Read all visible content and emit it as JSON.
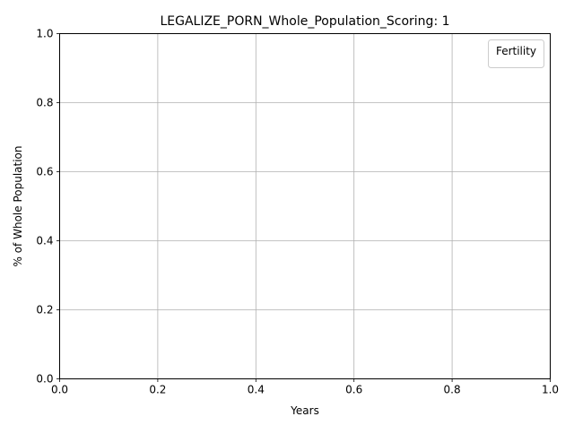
{
  "chart_data": {
    "type": "line",
    "title": "LEGALIZE_PORN_Whole_Population_Scoring: 1",
    "xlabel": "Years",
    "ylabel": "% of Whole Population",
    "xlim": [
      0.0,
      1.0
    ],
    "ylim": [
      0.0,
      1.0
    ],
    "x_ticks": [
      "0.0",
      "0.2",
      "0.4",
      "0.6",
      "0.8",
      "1.0"
    ],
    "y_ticks": [
      "0.0",
      "0.2",
      "0.4",
      "0.6",
      "0.8",
      "1.0"
    ],
    "grid": true,
    "legend": {
      "title": "Fertility",
      "position": "upper right",
      "entries": []
    },
    "series": []
  }
}
